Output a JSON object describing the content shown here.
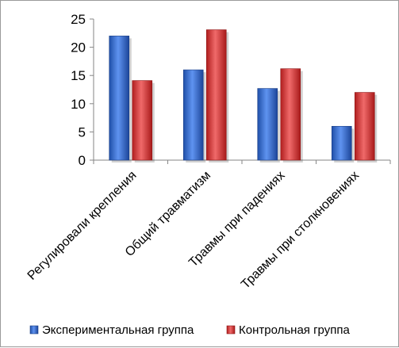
{
  "chart_data": {
    "type": "bar",
    "categories": [
      "Регулировали крепления",
      "Общий травматизм",
      "Травмы при падениях",
      "Травмы при столкновениях"
    ],
    "series": [
      {
        "name": "Экспериментальная группа",
        "values": [
          22,
          16,
          12.7,
          6
        ],
        "color": "#3a6fd0"
      },
      {
        "name": "Контрольная группа",
        "values": [
          14.1,
          23.1,
          16.2,
          12
        ],
        "color": "#d73a3a"
      }
    ],
    "yticks": [
      "0",
      "5",
      "10",
      "15",
      "20",
      "25"
    ],
    "ylim": [
      0,
      25
    ],
    "grid": false,
    "legend_position": "bottom"
  }
}
